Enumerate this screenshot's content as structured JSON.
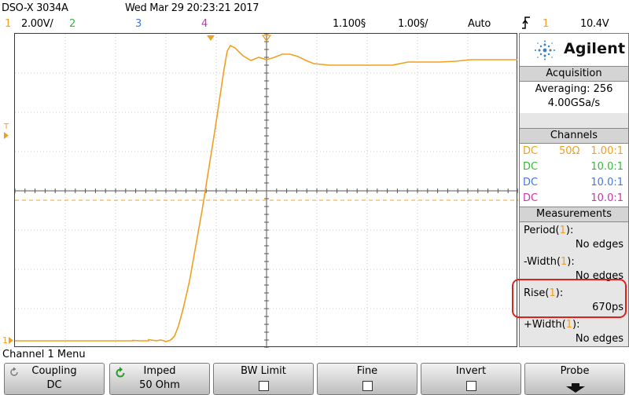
{
  "header": {
    "model": "DSO-X 3034A",
    "datetime": "Wed Mar 29 20:23:21 2017",
    "ch1_num": "1",
    "ch1_scale": "2.00V/",
    "ch2_num": "2",
    "ch3_num": "3",
    "ch4_num": "4",
    "timebase": "1.100§",
    "time_scale": "1.00§/",
    "trigger_mode": "Auto",
    "trigger_source": "1",
    "trigger_level": "10.4V"
  },
  "colors": {
    "ch1": "#f0a020",
    "ch2": "#33bb33",
    "ch3": "#4477dd",
    "ch4": "#cc33aa",
    "highlight": "#e0201e"
  },
  "screen": {
    "ground_marker": "1",
    "trigger_marker": "T"
  },
  "panel": {
    "brand": "Agilent",
    "acquisition": {
      "title": "Acquisition",
      "mode": "Averaging: 256",
      "rate": "4.00GSa/s"
    },
    "channels": {
      "title": "Channels",
      "rows": [
        {
          "coupling": "DC",
          "impedance": "50Ω",
          "probe": "1.00:1"
        },
        {
          "coupling": "DC",
          "impedance": "",
          "probe": "10.0:1"
        },
        {
          "coupling": "DC",
          "impedance": "",
          "probe": "10.0:1"
        },
        {
          "coupling": "DC",
          "impedance": "",
          "probe": "10.0:1"
        }
      ]
    },
    "measurements": {
      "title": "Measurements",
      "items": [
        {
          "name": "Period",
          "src": "1",
          "value": "No edges"
        },
        {
          "name": "-Width",
          "src": "1",
          "value": "No edges"
        },
        {
          "name": "Rise",
          "src": "1",
          "value": "670ps"
        },
        {
          "name": "+Width",
          "src": "1",
          "value": "No edges"
        }
      ]
    }
  },
  "menu": {
    "title": "Channel 1 Menu",
    "keys": [
      {
        "label": "Coupling",
        "value": "DC"
      },
      {
        "label": "Imped",
        "value": "50 Ohm"
      },
      {
        "label": "BW Limit",
        "value": ""
      },
      {
        "label": "Fine",
        "value": ""
      },
      {
        "label": "Invert",
        "value": ""
      },
      {
        "label": "Probe",
        "value": ""
      }
    ]
  }
}
